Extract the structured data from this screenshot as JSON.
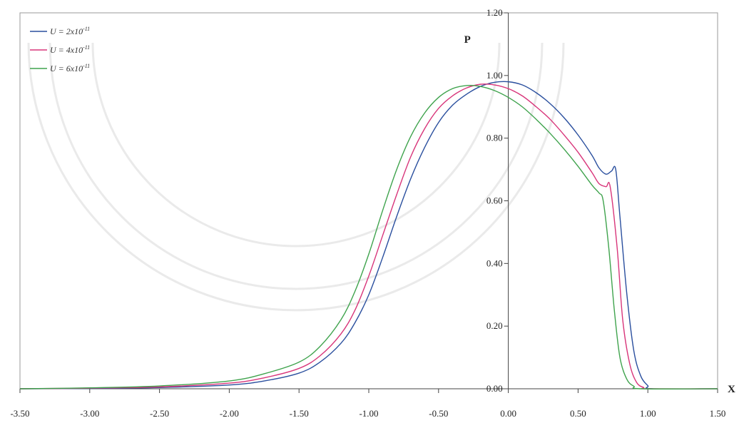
{
  "chart_data": {
    "type": "line",
    "title": "",
    "xlabel": "X",
    "ylabel": "P",
    "xlim": [
      -3.5,
      1.5
    ],
    "ylim": [
      0.0,
      1.2
    ],
    "x_ticks": [
      "-3.50",
      "-3.00",
      "-2.50",
      "-2.00",
      "-1.50",
      "-1.00",
      "-0.50",
      "0.00",
      "0.50",
      "1.00",
      "1.50"
    ],
    "y_ticks": [
      "0.00",
      "0.20",
      "0.40",
      "0.60",
      "0.80",
      "1.00",
      "1.20"
    ],
    "grid": false,
    "legend_position": "top-left",
    "series": [
      {
        "name": "U = 2x10",
        "exponent": "-11",
        "color": "#2a4f9e",
        "x": [
          -3.5,
          -3.0,
          -2.5,
          -2.0,
          -1.75,
          -1.5,
          -1.35,
          -1.2,
          -1.1,
          -1.0,
          -0.9,
          -0.8,
          -0.7,
          -0.6,
          -0.5,
          -0.4,
          -0.3,
          -0.2,
          -0.1,
          0.0,
          0.1,
          0.2,
          0.3,
          0.4,
          0.5,
          0.6,
          0.65,
          0.7,
          0.74,
          0.77,
          0.8,
          0.85,
          0.9,
          0.95,
          1.0,
          1.03,
          1.5
        ],
        "y": [
          0.0,
          0.001,
          0.004,
          0.012,
          0.025,
          0.05,
          0.085,
          0.145,
          0.21,
          0.3,
          0.42,
          0.55,
          0.67,
          0.77,
          0.85,
          0.905,
          0.94,
          0.965,
          0.978,
          0.98,
          0.97,
          0.945,
          0.91,
          0.865,
          0.81,
          0.745,
          0.705,
          0.685,
          0.695,
          0.7,
          0.55,
          0.3,
          0.12,
          0.04,
          0.01,
          0.0,
          0.0
        ]
      },
      {
        "name": "U = 4x10",
        "exponent": "-11",
        "color": "#d8357a",
        "x": [
          -3.5,
          -3.0,
          -2.5,
          -2.0,
          -1.75,
          -1.5,
          -1.35,
          -1.2,
          -1.1,
          -1.0,
          -0.9,
          -0.8,
          -0.7,
          -0.6,
          -0.5,
          -0.4,
          -0.3,
          -0.2,
          -0.1,
          0.0,
          0.1,
          0.2,
          0.3,
          0.4,
          0.5,
          0.6,
          0.65,
          0.7,
          0.73,
          0.78,
          0.82,
          0.87,
          0.92,
          0.97,
          1.0,
          1.5
        ],
        "y": [
          0.0,
          0.002,
          0.006,
          0.018,
          0.035,
          0.065,
          0.105,
          0.175,
          0.25,
          0.36,
          0.49,
          0.62,
          0.74,
          0.83,
          0.895,
          0.935,
          0.96,
          0.972,
          0.97,
          0.958,
          0.935,
          0.9,
          0.86,
          0.81,
          0.755,
          0.69,
          0.655,
          0.645,
          0.645,
          0.45,
          0.22,
          0.08,
          0.02,
          0.004,
          0.0,
          0.0
        ]
      },
      {
        "name": "U = 6x10",
        "exponent": "-11",
        "color": "#3fa34d",
        "x": [
          -3.5,
          -3.0,
          -2.5,
          -2.0,
          -1.75,
          -1.5,
          -1.35,
          -1.2,
          -1.1,
          -1.0,
          -0.9,
          -0.8,
          -0.7,
          -0.6,
          -0.5,
          -0.4,
          -0.3,
          -0.2,
          -0.1,
          0.0,
          0.1,
          0.2,
          0.3,
          0.4,
          0.5,
          0.6,
          0.65,
          0.68,
          0.72,
          0.76,
          0.8,
          0.85,
          0.9,
          0.95,
          1.5
        ],
        "y": [
          0.0,
          0.003,
          0.009,
          0.025,
          0.048,
          0.085,
          0.135,
          0.22,
          0.31,
          0.43,
          0.57,
          0.7,
          0.805,
          0.88,
          0.93,
          0.958,
          0.968,
          0.965,
          0.952,
          0.93,
          0.9,
          0.86,
          0.815,
          0.765,
          0.71,
          0.65,
          0.625,
          0.6,
          0.45,
          0.25,
          0.1,
          0.03,
          0.008,
          0.0,
          0.0
        ]
      }
    ]
  }
}
